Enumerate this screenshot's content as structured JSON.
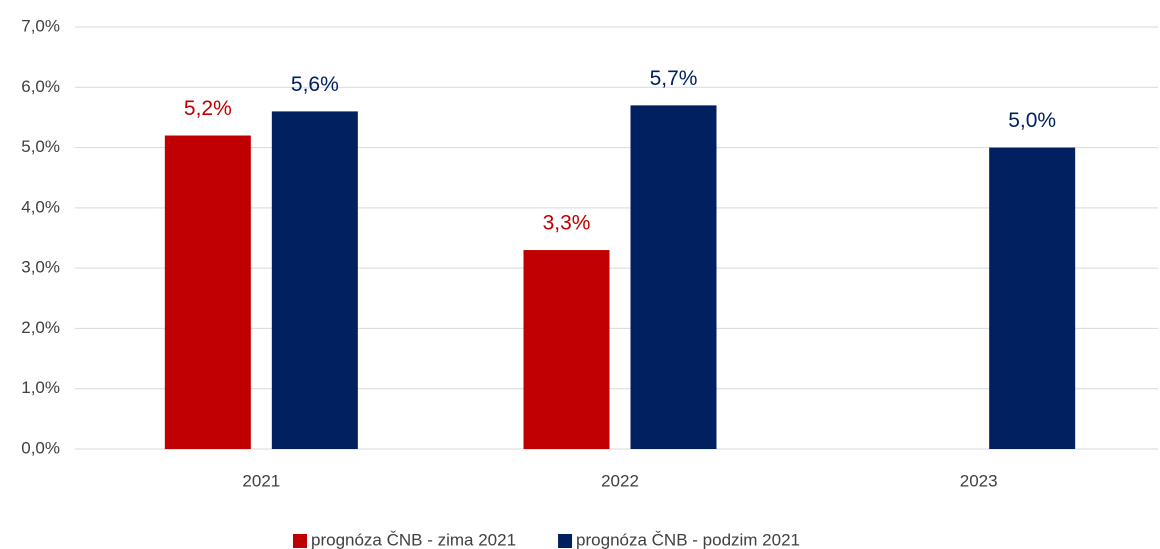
{
  "chart_data": {
    "type": "bar",
    "categories": [
      "2021",
      "2022",
      "2023"
    ],
    "series": [
      {
        "name": "prognóza ČNB - zima 2021",
        "color": "#c00000",
        "values": [
          5.2,
          3.3,
          null
        ],
        "value_labels": [
          "5,2%",
          "3,3%",
          null
        ]
      },
      {
        "name": "prognóza ČNB - podzim 2021",
        "color": "#002060",
        "values": [
          5.6,
          5.7,
          5.0
        ],
        "value_labels": [
          "5,6%",
          "5,7%",
          "5,0%"
        ]
      }
    ],
    "ylim": [
      0,
      7
    ],
    "yticks": [
      {
        "value": 0,
        "label": "0,0%"
      },
      {
        "value": 1,
        "label": "1,0%"
      },
      {
        "value": 2,
        "label": "2,0%"
      },
      {
        "value": 3,
        "label": "3,0%"
      },
      {
        "value": 4,
        "label": "4,0%"
      },
      {
        "value": 5,
        "label": "5,0%"
      },
      {
        "value": 6,
        "label": "6,0%"
      },
      {
        "value": 7,
        "label": "7,0%"
      }
    ],
    "grid": true,
    "legend": "bottom"
  }
}
